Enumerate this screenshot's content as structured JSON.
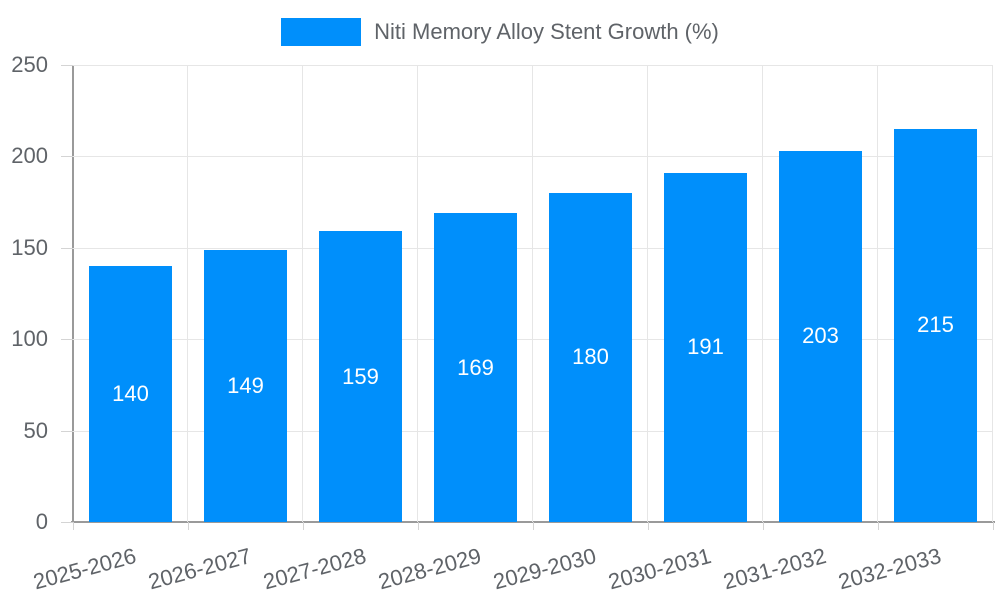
{
  "legend": {
    "label": "Niti Memory Alloy Stent Growth (%)",
    "swatch_color": "#008FFB"
  },
  "chart_data": {
    "type": "bar",
    "title": "",
    "categories": [
      "2025-2026",
      "2026-2027",
      "2027-2028",
      "2028-2029",
      "2029-2030",
      "2030-2031",
      "2031-2032",
      "2032-2033"
    ],
    "series": [
      {
        "name": "Niti Memory Alloy Stent Growth (%)",
        "values": [
          140,
          149,
          159,
          169,
          180,
          191,
          203,
          215
        ]
      }
    ],
    "values": [
      140,
      149,
      159,
      169,
      180,
      191,
      203,
      215
    ],
    "data_labels": [
      "140",
      "149",
      "159",
      "169",
      "180",
      "191",
      "203",
      "215"
    ],
    "xlabel": "",
    "ylabel": "",
    "ylim": [
      0,
      250
    ],
    "yticks": [
      0,
      50,
      100,
      150,
      200,
      250
    ],
    "grid": true,
    "legend_position": "top",
    "colors": {
      "bar": "#008FFB",
      "bar_label_text": "#ffffff",
      "axis_text": "#5f6368",
      "gridline": "#e6e6e6",
      "tick": "#d4d4d4",
      "axis_line": "#9a9a9a"
    }
  }
}
